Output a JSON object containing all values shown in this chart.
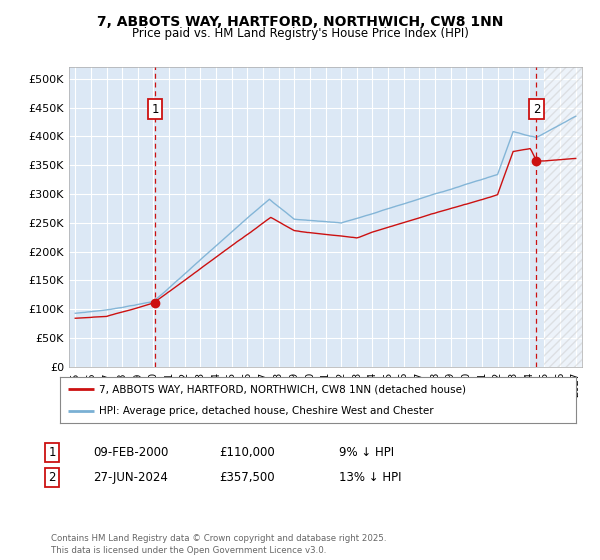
{
  "title_line1": "7, ABBOTS WAY, HARTFORD, NORTHWICH, CW8 1NN",
  "title_line2": "Price paid vs. HM Land Registry's House Price Index (HPI)",
  "ylim": [
    0,
    520000
  ],
  "xlim_start": 1994.6,
  "xlim_end": 2027.4,
  "background_color": "#ffffff",
  "plot_bg_color": "#dce8f5",
  "grid_color": "#ffffff",
  "hpi_color": "#7ab0d4",
  "price_color": "#cc1111",
  "transaction1_date": 2000.1,
  "transaction1_price": 110000,
  "transaction2_date": 2024.49,
  "transaction2_price": 357500,
  "legend_label1": "7, ABBOTS WAY, HARTFORD, NORTHWICH, CW8 1NN (detached house)",
  "legend_label2": "HPI: Average price, detached house, Cheshire West and Chester",
  "footer": "Contains HM Land Registry data © Crown copyright and database right 2025.\nThis data is licensed under the Open Government Licence v3.0.",
  "yticks": [
    0,
    50000,
    100000,
    150000,
    200000,
    250000,
    300000,
    350000,
    400000,
    450000,
    500000
  ],
  "ytick_labels": [
    "£0",
    "£50K",
    "£100K",
    "£150K",
    "£200K",
    "£250K",
    "£300K",
    "£350K",
    "£400K",
    "£450K",
    "£500K"
  ],
  "future_start": 2025.0,
  "hatch_color": "#bbbbbb"
}
